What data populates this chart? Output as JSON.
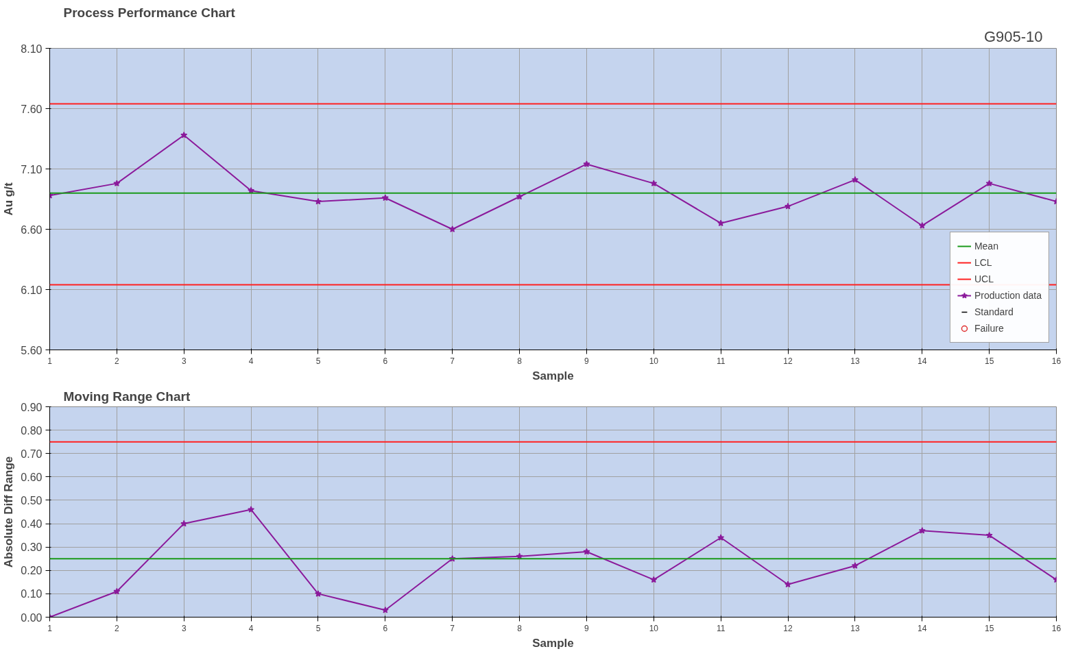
{
  "chart_data": [
    {
      "type": "line",
      "title": "Process Performance Chart",
      "xlabel": "Sample",
      "ylabel": "Au g/t",
      "annotations": [
        "G905-10"
      ],
      "x": [
        1,
        2,
        3,
        4,
        5,
        6,
        7,
        8,
        9,
        10,
        11,
        12,
        13,
        14,
        15,
        16
      ],
      "series": [
        {
          "name": "Production data",
          "color": "#8b1a9b",
          "values": [
            6.88,
            6.98,
            7.38,
            6.92,
            6.83,
            6.86,
            6.6,
            6.87,
            7.14,
            6.98,
            6.65,
            6.79,
            7.01,
            6.63,
            6.98,
            6.83
          ]
        },
        {
          "name": "Standard",
          "color": "#000000",
          "type": "scatter",
          "marker": "dash",
          "values": [
            null,
            null,
            null,
            null,
            null,
            null,
            null,
            null,
            null,
            null,
            null,
            null,
            null,
            null,
            null,
            null
          ]
        },
        {
          "name": "Failure",
          "color": "#e03030",
          "type": "scatter",
          "marker": "circle",
          "values": [
            null,
            null,
            null,
            null,
            null,
            null,
            null,
            null,
            null,
            null,
            null,
            null,
            null,
            null,
            null,
            null
          ]
        }
      ],
      "ref_lines": [
        {
          "axis": "y",
          "value": 6.9,
          "label": "Mean",
          "color": "#1a9a1a"
        },
        {
          "axis": "y",
          "value": 6.14,
          "label": "LCL",
          "color": "#ff2020"
        },
        {
          "axis": "y",
          "value": 7.64,
          "label": "UCL",
          "color": "#ff2020"
        }
      ],
      "xlim": [
        1,
        16
      ],
      "xticks": [
        1,
        2,
        3,
        4,
        5,
        6,
        7,
        8,
        9,
        10,
        11,
        12,
        13,
        14,
        15,
        16
      ],
      "ylim": [
        5.6,
        8.1
      ],
      "yticks": [
        {
          "value": 5.6,
          "label": "5.60"
        },
        {
          "value": 6.1,
          "label": "6.10"
        },
        {
          "value": 6.6,
          "label": "6.60"
        },
        {
          "value": 7.1,
          "label": "7.10"
        },
        {
          "value": 7.6,
          "label": "7.60"
        },
        {
          "value": 8.1,
          "label": "8.10"
        }
      ],
      "grid": true,
      "legend": "bottom right",
      "marker": "star",
      "line_style": "solid"
    },
    {
      "type": "line",
      "title": "Moving Range Chart",
      "xlabel": "Sample",
      "ylabel": "Absolute Diff Range",
      "x": [
        1,
        2,
        3,
        4,
        5,
        6,
        7,
        8,
        9,
        10,
        11,
        12,
        13,
        14,
        15,
        16
      ],
      "series": [
        {
          "color": "#8b1a9b",
          "values": [
            0.0,
            0.11,
            0.4,
            0.46,
            0.1,
            0.03,
            0.25,
            0.26,
            0.28,
            0.16,
            0.34,
            0.14,
            0.22,
            0.37,
            0.35,
            0.16
          ]
        }
      ],
      "ref_lines": [
        {
          "axis": "y",
          "value": 0.25,
          "label": null,
          "color": "#1a9a1a"
        },
        {
          "axis": "y",
          "value": 0.75,
          "label": null,
          "color": "#ff2020"
        }
      ],
      "xlim": [
        1,
        16
      ],
      "xticks": [
        1,
        2,
        3,
        4,
        5,
        6,
        7,
        8,
        9,
        10,
        11,
        12,
        13,
        14,
        15,
        16
      ],
      "ylim": [
        0,
        0.9
      ],
      "yticks": [
        {
          "value": 0,
          "label": "0.00"
        },
        {
          "value": 0.1,
          "label": "0.10"
        },
        {
          "value": 0.2,
          "label": "0.20"
        },
        {
          "value": 0.3,
          "label": "0.30"
        },
        {
          "value": 0.4,
          "label": "0.40"
        },
        {
          "value": 0.5,
          "label": "0.50"
        },
        {
          "value": 0.6,
          "label": "0.60"
        },
        {
          "value": 0.7,
          "label": "0.70"
        },
        {
          "value": 0.8,
          "label": "0.80"
        },
        {
          "value": 0.9,
          "label": "0.90"
        }
      ],
      "grid": true,
      "legend": false,
      "marker": "star",
      "line_style": "solid"
    }
  ]
}
